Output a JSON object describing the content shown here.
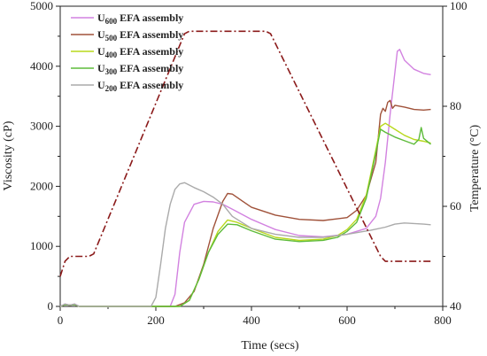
{
  "chart_data": {
    "type": "line",
    "xlabel": "Time (secs)",
    "ylabel": "Viscosity (cP)",
    "y2label": "Temperature (°C)",
    "xlim": [
      0,
      800
    ],
    "ylim": [
      0,
      5000
    ],
    "y2lim": [
      40,
      100
    ],
    "xticks": [
      "0",
      "200",
      "400",
      "600",
      "800"
    ],
    "yticks": [
      "0",
      "1000",
      "2000",
      "3000",
      "4000",
      "5000"
    ],
    "y2ticks": [
      "40",
      "60",
      "80",
      "100"
    ],
    "grid": false,
    "legend_position": "top-left",
    "series": [
      {
        "name": "U600 EFA assembly",
        "legend_main": "U",
        "legend_sub": "600",
        "legend_rest": " EFA assembly",
        "color": "#d282e0",
        "axis": "left",
        "x": [
          0,
          10,
          20,
          30,
          40,
          230,
          240,
          250,
          260,
          280,
          300,
          320,
          340,
          360,
          400,
          450,
          500,
          550,
          600,
          640,
          660,
          670,
          680,
          690,
          700,
          705,
          710,
          720,
          740,
          760,
          775
        ],
        "y": [
          0,
          40,
          20,
          40,
          0,
          0,
          200,
          900,
          1400,
          1700,
          1750,
          1740,
          1700,
          1620,
          1450,
          1280,
          1180,
          1160,
          1200,
          1300,
          1500,
          1800,
          2400,
          3200,
          3900,
          4250,
          4280,
          4100,
          3950,
          3880,
          3860
        ]
      },
      {
        "name": "U500 EFA assembly",
        "legend_main": "U",
        "legend_sub": "500",
        "legend_rest": " EFA assembly",
        "color": "#a0523a",
        "axis": "left",
        "x": [
          0,
          10,
          20,
          30,
          40,
          240,
          260,
          280,
          300,
          320,
          340,
          350,
          360,
          380,
          400,
          450,
          500,
          550,
          600,
          620,
          640,
          660,
          670,
          675,
          680,
          685,
          690,
          695,
          700,
          720,
          740,
          760,
          775
        ],
        "y": [
          0,
          30,
          20,
          30,
          0,
          0,
          60,
          250,
          700,
          1300,
          1750,
          1880,
          1870,
          1760,
          1650,
          1520,
          1450,
          1430,
          1480,
          1600,
          1850,
          2400,
          3200,
          3300,
          3250,
          3400,
          3430,
          3300,
          3350,
          3320,
          3280,
          3270,
          3280
        ]
      },
      {
        "name": "U400 EFA assembly",
        "legend_main": "U",
        "legend_sub": "400",
        "legend_rest": " EFA assembly",
        "color": "#b8d81c",
        "axis": "left",
        "x": [
          0,
          10,
          20,
          30,
          40,
          250,
          270,
          290,
          310,
          330,
          350,
          370,
          400,
          450,
          500,
          550,
          580,
          600,
          620,
          640,
          660,
          670,
          680,
          700,
          720,
          740,
          760,
          775
        ],
        "y": [
          0,
          30,
          20,
          30,
          0,
          0,
          100,
          450,
          900,
          1250,
          1440,
          1400,
          1300,
          1150,
          1100,
          1120,
          1180,
          1280,
          1450,
          1850,
          2600,
          3000,
          3050,
          2950,
          2850,
          2780,
          2750,
          2720
        ]
      },
      {
        "name": "U300 EFA assembly",
        "legend_main": "U",
        "legend_sub": "300",
        "legend_rest": " EFA assembly",
        "color": "#5dbb3a",
        "axis": "left",
        "x": [
          0,
          10,
          20,
          30,
          40,
          250,
          270,
          290,
          310,
          330,
          350,
          370,
          400,
          450,
          500,
          550,
          580,
          600,
          620,
          640,
          660,
          670,
          680,
          700,
          720,
          740,
          750,
          755,
          760,
          775
        ],
        "y": [
          0,
          30,
          20,
          30,
          0,
          0,
          100,
          450,
          900,
          1200,
          1370,
          1360,
          1260,
          1120,
          1080,
          1100,
          1150,
          1250,
          1400,
          1800,
          2550,
          2950,
          2900,
          2820,
          2760,
          2700,
          2780,
          2980,
          2800,
          2700
        ]
      },
      {
        "name": "U200 EFA assembly",
        "legend_main": "U",
        "legend_sub": "200",
        "legend_rest": " EFA assembly",
        "color": "#aaaaaa",
        "axis": "left",
        "x": [
          0,
          10,
          20,
          30,
          40,
          190,
          200,
          210,
          220,
          230,
          240,
          250,
          260,
          270,
          280,
          300,
          320,
          340,
          360,
          400,
          450,
          500,
          550,
          600,
          650,
          680,
          700,
          720,
          740,
          760,
          775
        ],
        "y": [
          0,
          40,
          20,
          40,
          0,
          0,
          150,
          700,
          1300,
          1700,
          1950,
          2040,
          2060,
          2020,
          1980,
          1910,
          1820,
          1700,
          1500,
          1300,
          1200,
          1150,
          1150,
          1200,
          1270,
          1320,
          1370,
          1390,
          1380,
          1370,
          1360
        ]
      },
      {
        "name": "Temperature",
        "color": "#8b1a1a",
        "dash": "8,3,2,3",
        "axis": "right",
        "x": [
          0,
          10,
          20,
          30,
          40,
          50,
          60,
          70,
          260,
          270,
          300,
          350,
          420,
          430,
          440,
          670,
          680,
          700,
          750,
          775
        ],
        "y": [
          46,
          49,
          50,
          50,
          50,
          50,
          50,
          50.5,
          94.5,
          95,
          95,
          95,
          95,
          95,
          94.5,
          50,
          49,
          49,
          49,
          49
        ]
      }
    ]
  }
}
